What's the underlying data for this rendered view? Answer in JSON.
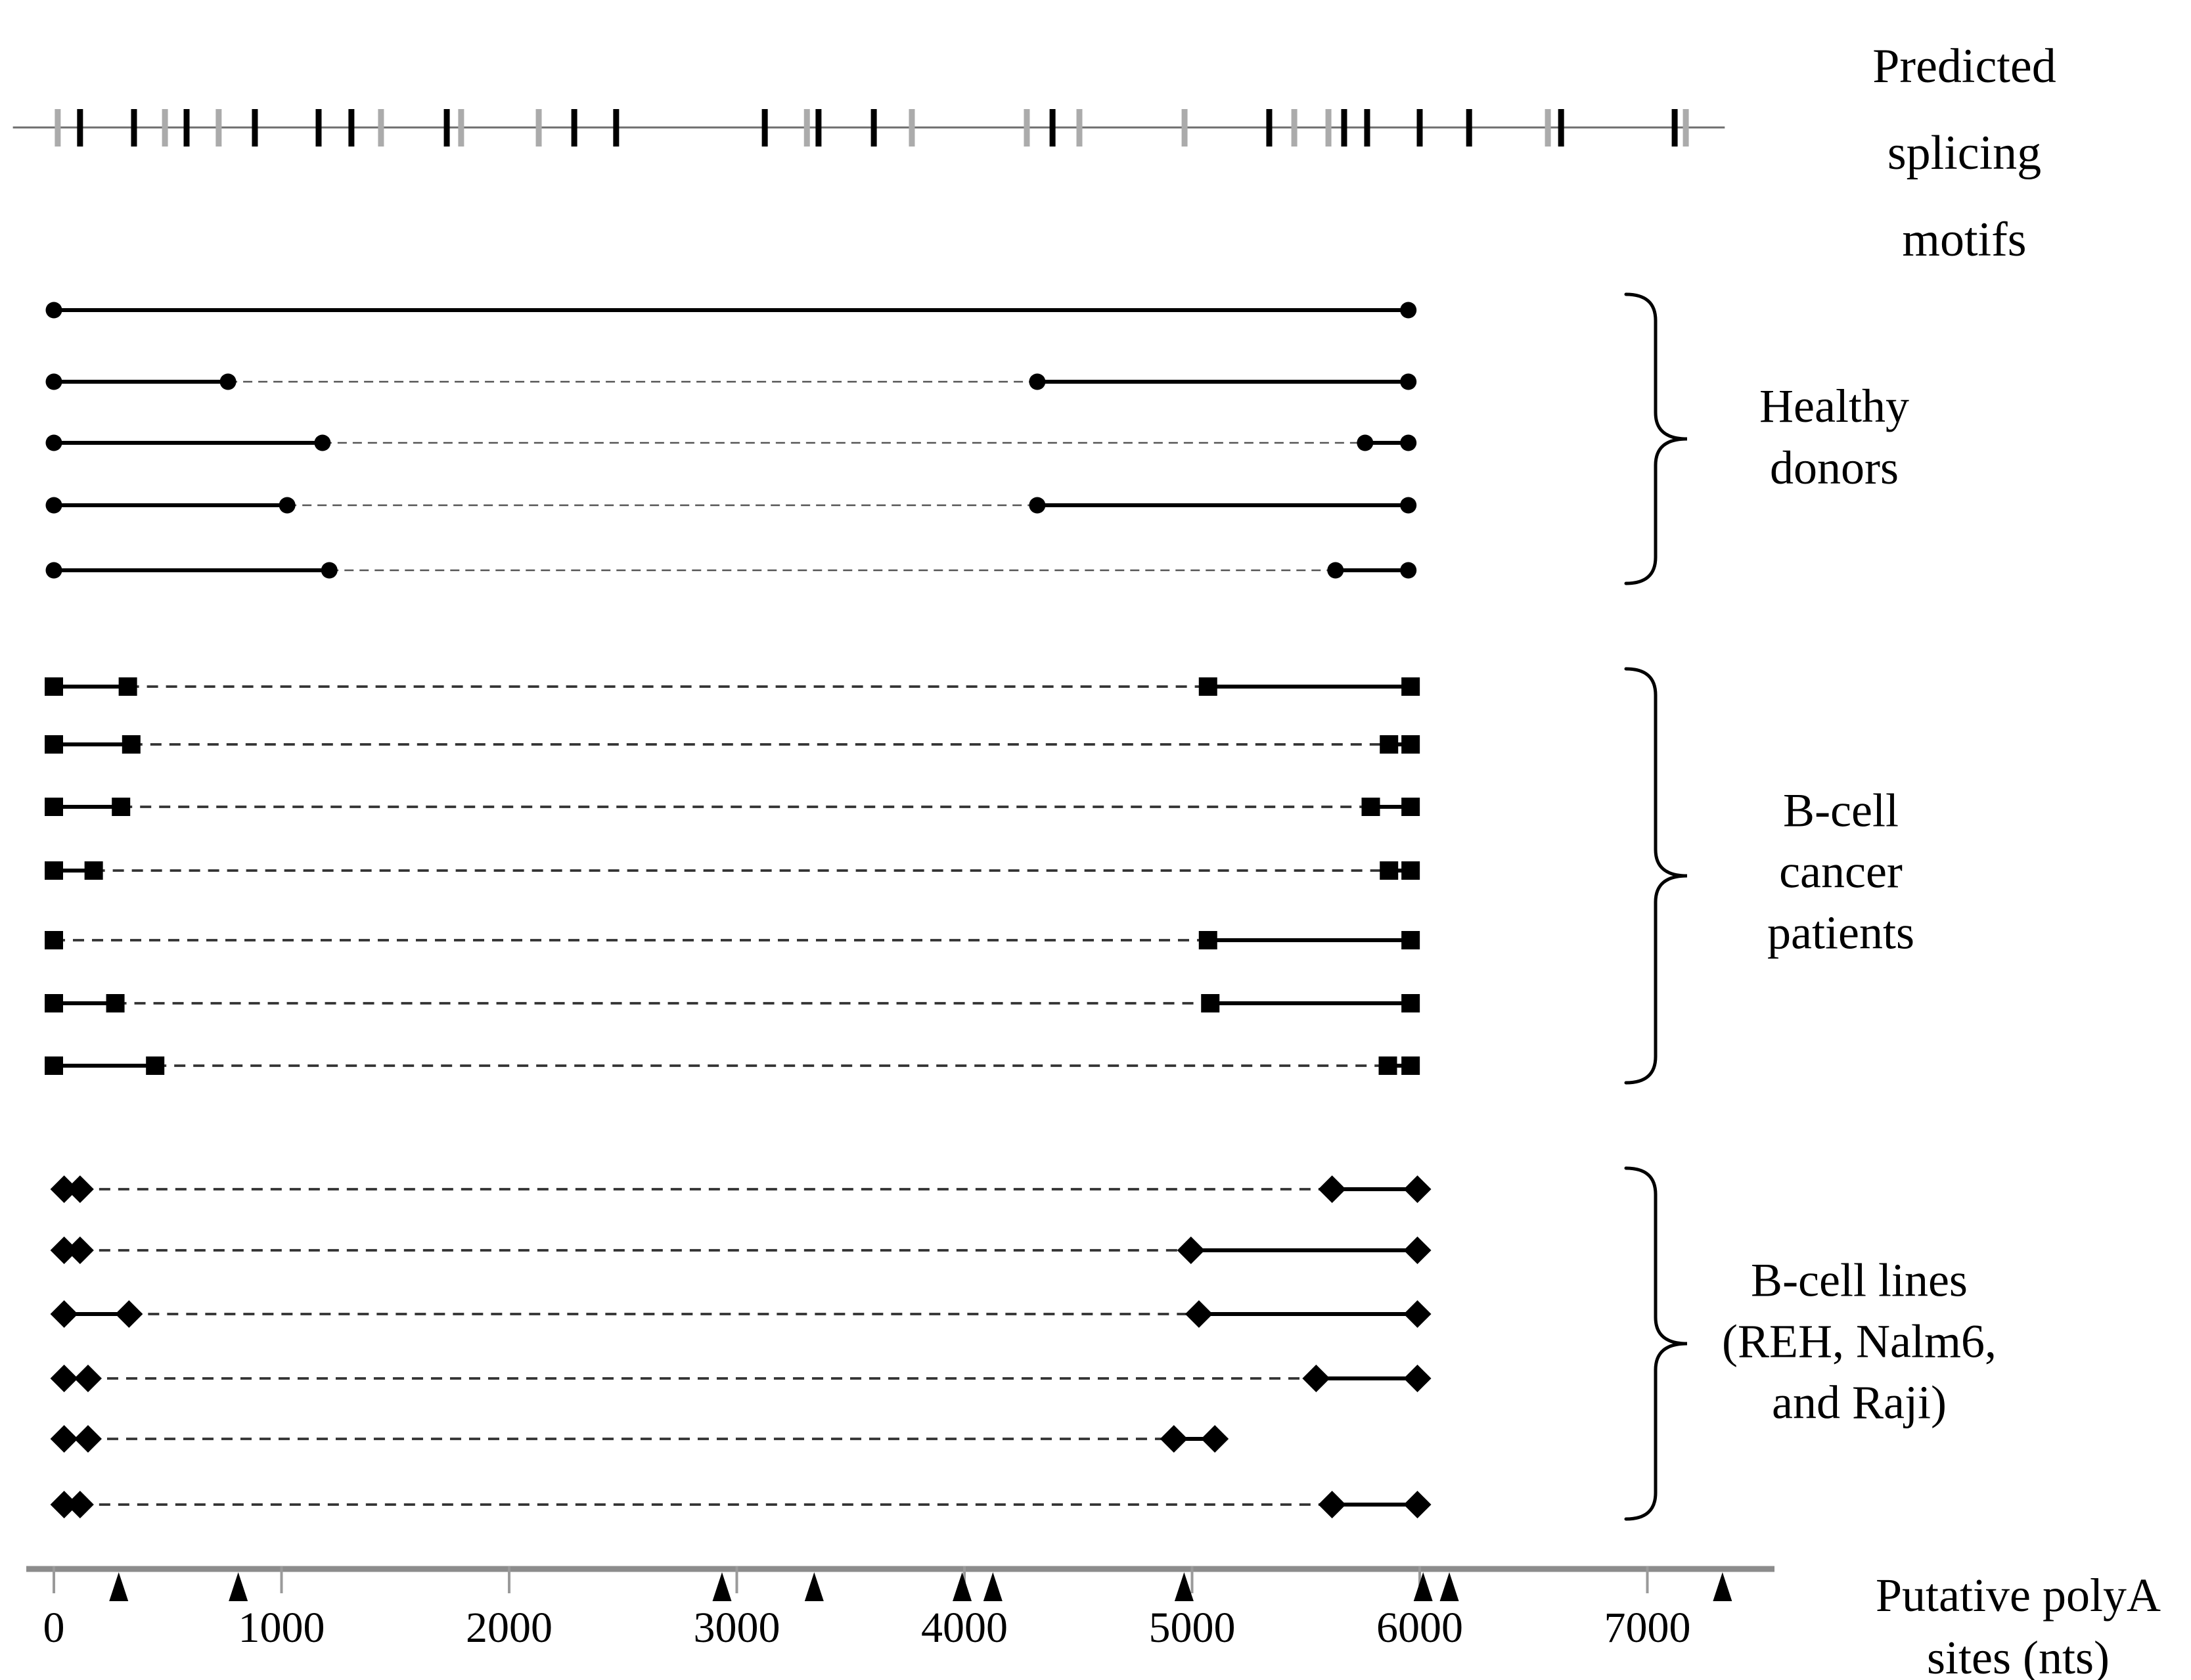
{
  "labels": {
    "splicing": [
      "Predicted",
      "splicing",
      "motifs"
    ],
    "healthy": [
      "Healthy",
      "donors"
    ],
    "patients": [
      "B-cell",
      "cancer",
      "patients"
    ],
    "cell_lines": [
      "B-cell lines",
      "(REH, Nalm6,",
      "and Raji)"
    ],
    "polya": [
      "Putative polyA",
      "sites (nts)"
    ]
  },
  "colors": {
    "black": "#000000",
    "gray_tick": "#ababab",
    "axis_gray": "#8c8c8c",
    "motif_line": "#6e6e6e",
    "dash_dark": "#333333",
    "dash_light": "#555555"
  },
  "chart_data": {
    "type": "scatter",
    "description": "Transcript isoform map: rows of sequenced clones per sample group; markers are exon/segment boundaries joined by solid lines, dashed lines indicate skipped internal region; top track shows predicted splicing motifs; bottom axis shows putative polyA sites in nucleotides.",
    "x_axis": {
      "label": "Putative polyA sites (nts)",
      "ticks": [
        0,
        1000,
        2000,
        3000,
        4000,
        5000,
        6000,
        7000
      ],
      "range_nt": [
        -120,
        7560
      ]
    },
    "splicing_motifs": {
      "label": "Predicted splicing motifs",
      "line_range_nt": [
        -180,
        7340
      ],
      "ticks": [
        {
          "pos": 17,
          "color": "gray"
        },
        {
          "pos": 115,
          "color": "black"
        },
        {
          "pos": 352,
          "color": "black"
        },
        {
          "pos": 488,
          "color": "gray"
        },
        {
          "pos": 583,
          "color": "black"
        },
        {
          "pos": 724,
          "color": "gray"
        },
        {
          "pos": 883,
          "color": "black"
        },
        {
          "pos": 1163,
          "color": "black"
        },
        {
          "pos": 1307,
          "color": "black"
        },
        {
          "pos": 1437,
          "color": "gray"
        },
        {
          "pos": 1726,
          "color": "black"
        },
        {
          "pos": 1789,
          "color": "gray"
        },
        {
          "pos": 2130,
          "color": "gray"
        },
        {
          "pos": 2286,
          "color": "black"
        },
        {
          "pos": 2470,
          "color": "black"
        },
        {
          "pos": 3123,
          "color": "black"
        },
        {
          "pos": 3308,
          "color": "gray"
        },
        {
          "pos": 3359,
          "color": "black"
        },
        {
          "pos": 3602,
          "color": "black"
        },
        {
          "pos": 3769,
          "color": "gray"
        },
        {
          "pos": 4274,
          "color": "gray"
        },
        {
          "pos": 4387,
          "color": "black"
        },
        {
          "pos": 4505,
          "color": "gray"
        },
        {
          "pos": 4967,
          "color": "gray"
        },
        {
          "pos": 5339,
          "color": "black"
        },
        {
          "pos": 5449,
          "color": "gray"
        },
        {
          "pos": 5599,
          "color": "gray"
        },
        {
          "pos": 5668,
          "color": "black"
        },
        {
          "pos": 5769,
          "color": "black"
        },
        {
          "pos": 6000,
          "color": "black"
        },
        {
          "pos": 6217,
          "color": "black"
        },
        {
          "pos": 6563,
          "color": "gray"
        },
        {
          "pos": 6621,
          "color": "black"
        },
        {
          "pos": 7120,
          "color": "black"
        },
        {
          "pos": 7169,
          "color": "gray"
        }
      ]
    },
    "polyA_sites_nt": [
      285,
      810,
      2935,
      3340,
      3990,
      4125,
      4965,
      6015,
      6130,
      7330
    ],
    "groups": [
      {
        "name": "Healthy donors",
        "marker": "circle",
        "rows": [
          {
            "segments": [
              [
                0,
                5950
              ]
            ]
          },
          {
            "segments": [
              [
                0,
                765
              ],
              [
                4320,
                5950
              ]
            ]
          },
          {
            "segments": [
              [
                0,
                1180
              ],
              [
                5760,
                5950
              ]
            ]
          },
          {
            "segments": [
              [
                0,
                1025
              ],
              [
                4320,
                5950
              ]
            ]
          },
          {
            "segments": [
              [
                0,
                1210
              ],
              [
                5630,
                5950
              ]
            ]
          }
        ]
      },
      {
        "name": "B-cell cancer patients",
        "marker": "square",
        "rows": [
          {
            "segments": [
              [
                0,
                325
              ],
              [
                5070,
                5960
              ]
            ]
          },
          {
            "segments": [
              [
                0,
                340
              ],
              [
                5865,
                5960
              ]
            ]
          },
          {
            "segments": [
              [
                0,
                295
              ],
              [
                5785,
                5960
              ]
            ]
          },
          {
            "segments": [
              [
                0,
                175
              ],
              [
                5865,
                5960
              ]
            ]
          },
          {
            "segments": [
              [
                0,
                0
              ],
              [
                5070,
                5960
              ]
            ]
          },
          {
            "segments": [
              [
                0,
                270
              ],
              [
                5080,
                5960
              ]
            ]
          },
          {
            "segments": [
              [
                0,
                445
              ],
              [
                5860,
                5960
              ]
            ]
          }
        ]
      },
      {
        "name": "B-cell lines (REH, Nalm6, and Raji)",
        "marker": "diamond",
        "rows": [
          {
            "segments": [
              [
                45,
                115
              ],
              [
                5615,
                5990
              ]
            ]
          },
          {
            "segments": [
              [
                45,
                115
              ],
              [
                4995,
                5990
              ]
            ]
          },
          {
            "segments": [
              [
                45,
                330
              ],
              [
                5030,
                5990
              ]
            ]
          },
          {
            "segments": [
              [
                45,
                150
              ],
              [
                5545,
                5990
              ]
            ]
          },
          {
            "segments": [
              [
                45,
                150
              ],
              [
                4920,
                5100
              ]
            ]
          },
          {
            "segments": [
              [
                45,
                115
              ],
              [
                5615,
                5990
              ]
            ]
          }
        ]
      }
    ]
  }
}
